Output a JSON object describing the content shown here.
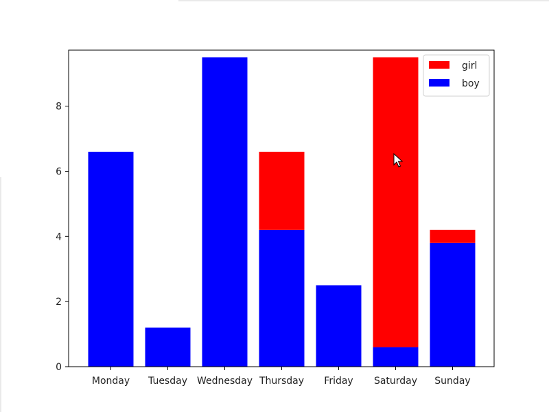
{
  "chart_data": {
    "type": "bar",
    "stacked": true,
    "categories": [
      "Monday",
      "Tuesday",
      "Wednesday",
      "Thursday",
      "Friday",
      "Saturday",
      "Sunday"
    ],
    "series": [
      {
        "name": "boy",
        "color": "#0000ff",
        "values": [
          6.6,
          1.2,
          9.5,
          4.2,
          2.5,
          0.6,
          3.8
        ]
      },
      {
        "name": "girl",
        "color": "#ff0000",
        "values": [
          0,
          0,
          0,
          2.4,
          0,
          8.9,
          0.4
        ]
      }
    ],
    "ylim": [
      0,
      9.72
    ],
    "yticks": [
      0,
      2,
      4,
      6,
      8
    ],
    "legend": {
      "position": "top-right",
      "entries": [
        {
          "label": "girl",
          "color": "#ff0000"
        },
        {
          "label": "boy",
          "color": "#0000ff"
        }
      ]
    },
    "grid": false,
    "title": "",
    "xlabel": "",
    "ylabel": ""
  }
}
